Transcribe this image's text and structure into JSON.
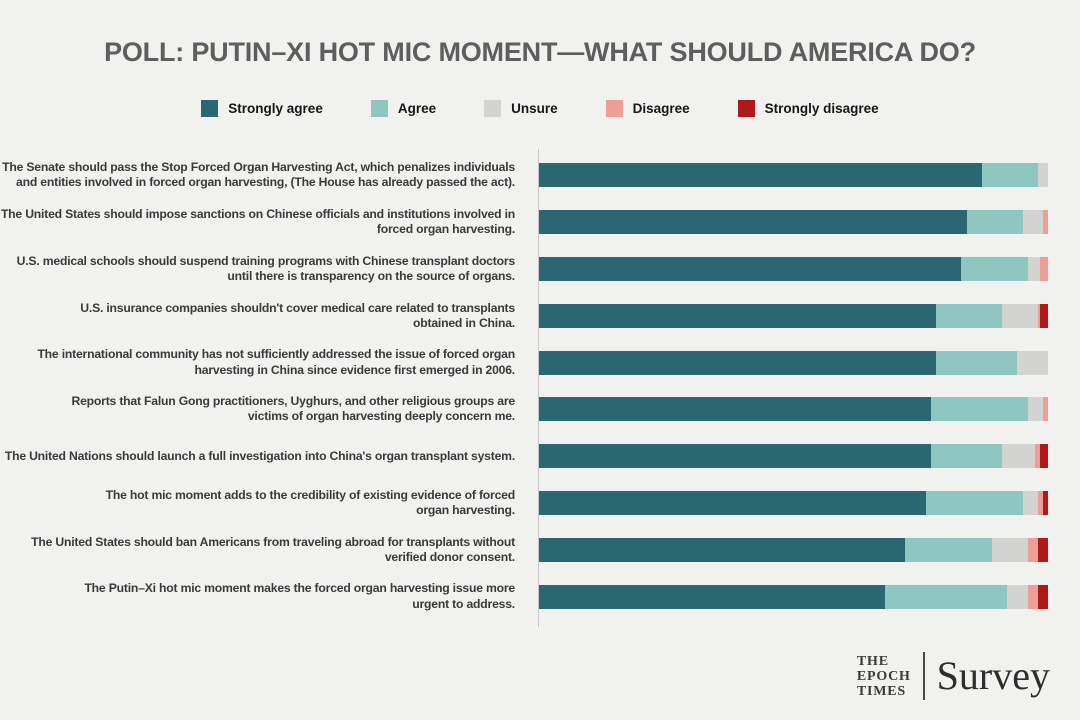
{
  "title": "POLL: PUTIN–XI HOT MIC MOMENT—WHAT SHOULD AMERICA DO?",
  "colors": {
    "background": "#f1f1ef",
    "title": "#5e5e5e",
    "statement_text": "#3a3a3a",
    "axis_line": "#c6c6c6",
    "strongly_agree": "#2a6770",
    "agree": "#8fc6c0",
    "unsure": "#d3d3d2",
    "disagree": "#ef9d97",
    "strongly_disagree": "#b0191b"
  },
  "chart_data": {
    "type": "bar",
    "orientation": "horizontal",
    "stacked": true,
    "title": "POLL: PUTIN–XI HOT MIC MOMENT—WHAT SHOULD AMERICA DO?",
    "value_axis": {
      "min": 0,
      "max": 100,
      "unit": "%",
      "tick_labels_shown": false,
      "grid": false
    },
    "legend_position": "top",
    "values_estimated_from_bar_lengths": true,
    "categories": [
      "The Senate should pass the Stop Forced Organ Harvesting Act, which penalizes individuals\nand entities involved in forced organ harvesting, (The House has already passed the act).",
      "The United States should impose sanctions on Chinese officials and institutions involved in\nforced organ harvesting.",
      "U.S. medical schools should suspend training programs with Chinese transplant doctors\nuntil there is transparency on the source of organs.",
      "U.S. insurance companies shouldn't cover medical care related to transplants\nobtained in China.",
      "The international community has not sufficiently addressed the issue of forced organ\nharvesting in China since evidence first emerged in 2006.",
      "Reports that Falun Gong practitioners, Uyghurs, and other religious groups are\nvictims of organ harvesting deeply concern me.",
      "The United Nations should launch a full investigation into China's organ transplant system.",
      "The hot mic moment adds to the credibility of existing evidence of forced\norgan harvesting.",
      "The United States should ban Americans from traveling abroad for transplants without\nverified donor consent.",
      "The Putin–Xi hot mic moment makes the forced organ harvesting issue more\nurgent to address."
    ],
    "series": [
      {
        "name": "Strongly agree",
        "color": "#2a6770",
        "values": [
          87,
          84,
          83,
          78,
          78,
          77,
          77,
          76,
          72,
          68
        ]
      },
      {
        "name": "Agree",
        "color": "#8fc6c0",
        "values": [
          11,
          11,
          13,
          13,
          16,
          19,
          14,
          19,
          17,
          24
        ]
      },
      {
        "name": "Unsure",
        "color": "#d3d3d2",
        "values": [
          2,
          4,
          2.5,
          7,
          6,
          3,
          6.5,
          3,
          7,
          4
        ]
      },
      {
        "name": "Disagree",
        "color": "#ef9d97",
        "values": [
          0,
          1,
          1.5,
          0.5,
          0,
          1,
          1,
          1,
          2,
          2
        ]
      },
      {
        "name": "Strongly disagree",
        "color": "#b0191b",
        "values": [
          0,
          0,
          0,
          1.5,
          0,
          0,
          1.5,
          1,
          2,
          2
        ]
      }
    ]
  },
  "footer": {
    "brand_lines": [
      "THE",
      "EPOCH",
      "TIMES"
    ],
    "wordmark": "Survey"
  }
}
